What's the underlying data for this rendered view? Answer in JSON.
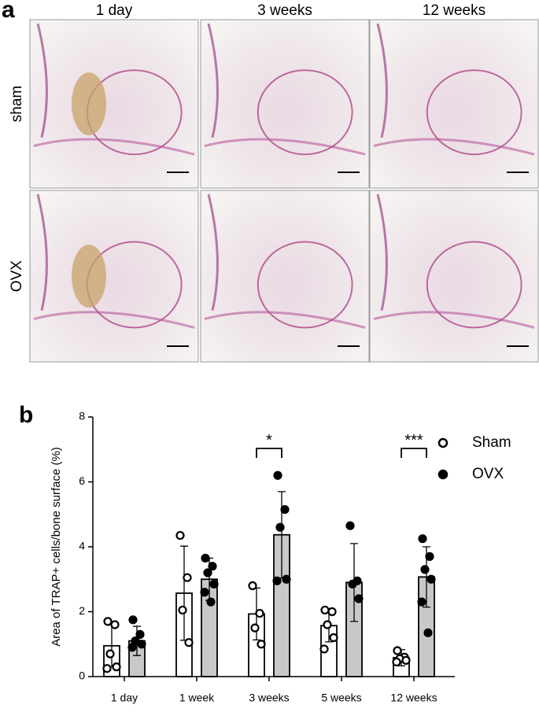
{
  "panels": {
    "a": {
      "label": "a",
      "columns": [
        "1 day",
        "3 weeks",
        "12 weeks"
      ],
      "rows": [
        "sham",
        "OVX"
      ]
    }
  },
  "chart_data": {
    "type": "bar",
    "panel_label": "b",
    "y_label": "Area of TRAP+ cells/bone surface (%)",
    "categories": [
      "1 day",
      "1 week",
      "3 weeks",
      "5 weeks",
      "12 weeks"
    ],
    "ylim": [
      0,
      8
    ],
    "yticks": [
      0,
      2,
      4,
      6,
      8
    ],
    "legend": "right",
    "series": [
      {
        "name": "Sham",
        "color": "#ffffff",
        "marker": "open",
        "values": [
          0.95,
          2.57,
          1.93,
          1.57,
          0.58
        ],
        "errors": [
          0.65,
          1.45,
          0.8,
          0.5,
          0.25
        ],
        "points": [
          [
            1.7,
            1.6,
            0.7,
            0.3,
            0.25
          ],
          [
            4.35,
            3.05,
            2.05,
            1.05
          ],
          [
            2.8,
            1.95,
            1.5,
            1.0
          ],
          [
            2.05,
            2.0,
            1.6,
            1.2,
            0.85
          ],
          [
            0.8,
            0.6,
            0.55,
            0.5,
            0.45
          ]
        ]
      },
      {
        "name": "OVX",
        "color": "#c8c8c8",
        "marker": "filled",
        "values": [
          1.1,
          3.0,
          4.37,
          2.9,
          3.07
        ],
        "errors": [
          0.45,
          0.65,
          1.33,
          1.2,
          0.93
        ],
        "points": [
          [
            1.75,
            1.3,
            1.1,
            1.0,
            0.9
          ],
          [
            3.65,
            3.4,
            3.2,
            2.85,
            2.6,
            2.3
          ],
          [
            6.2,
            5.15,
            4.6,
            3.0,
            2.95
          ],
          [
            4.65,
            2.95,
            2.85,
            2.4
          ],
          [
            4.25,
            3.7,
            3.3,
            3.0,
            2.3,
            1.35
          ]
        ]
      }
    ],
    "annotations": [
      {
        "label": "*",
        "category": "3 weeks"
      },
      {
        "label": "***",
        "category": "12 weeks"
      }
    ]
  }
}
